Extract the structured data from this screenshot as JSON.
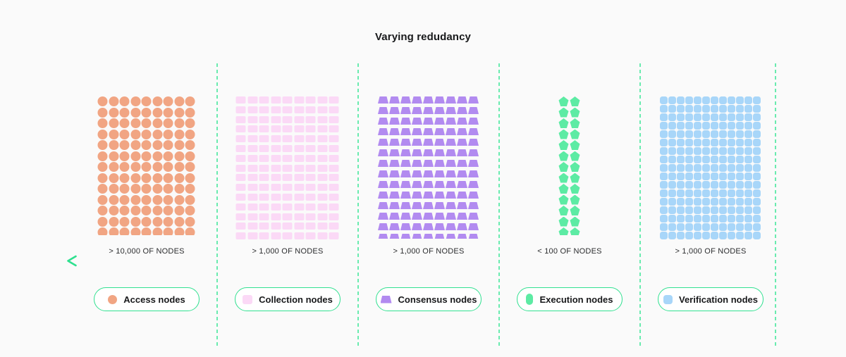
{
  "title": "Varying redudancy",
  "colors": {
    "background": "#FAFAFA",
    "separator": "#6AEBAF",
    "pill_border": "#31E090",
    "arrow_gradient_start": "#2EE08F",
    "arrow_gradient_end": "#0F7C54"
  },
  "groups": [
    {
      "id": "access",
      "legend_label": "Access nodes",
      "count_label": "> 10,000 OF NODES",
      "shape": "circle",
      "icon_name": "access-node-circle-icon",
      "color": "#F1A583",
      "cols": 9,
      "rows": 13
    },
    {
      "id": "collection",
      "legend_label": "Collection nodes",
      "count_label": "> 1,000 OF NODES",
      "shape": "rect",
      "icon_name": "collection-node-square-icon",
      "color": "#FBD9F6",
      "cols": 9,
      "rows": 15
    },
    {
      "id": "consensus",
      "legend_label": "Consensus nodes",
      "count_label": "> 1,000 OF NODES",
      "shape": "trapezoid",
      "icon_name": "consensus-node-trapezoid-icon",
      "color": "#B28BF0",
      "cols": 9,
      "rows": 14
    },
    {
      "id": "execution",
      "legend_label": "Execution nodes",
      "count_label": "< 100 OF NODES",
      "shape": "pentagon",
      "icon_name": "execution-node-capsule-icon",
      "color": "#5DEBA4",
      "cols": 2,
      "rows": 13
    },
    {
      "id": "verification",
      "legend_label": "Verification nodes",
      "count_label": "> 1,000 OF NODES",
      "shape": "rounded-square",
      "icon_name": "verification-node-square-icon",
      "color": "#A8D6F9",
      "cols": 12,
      "rows": 17
    }
  ]
}
